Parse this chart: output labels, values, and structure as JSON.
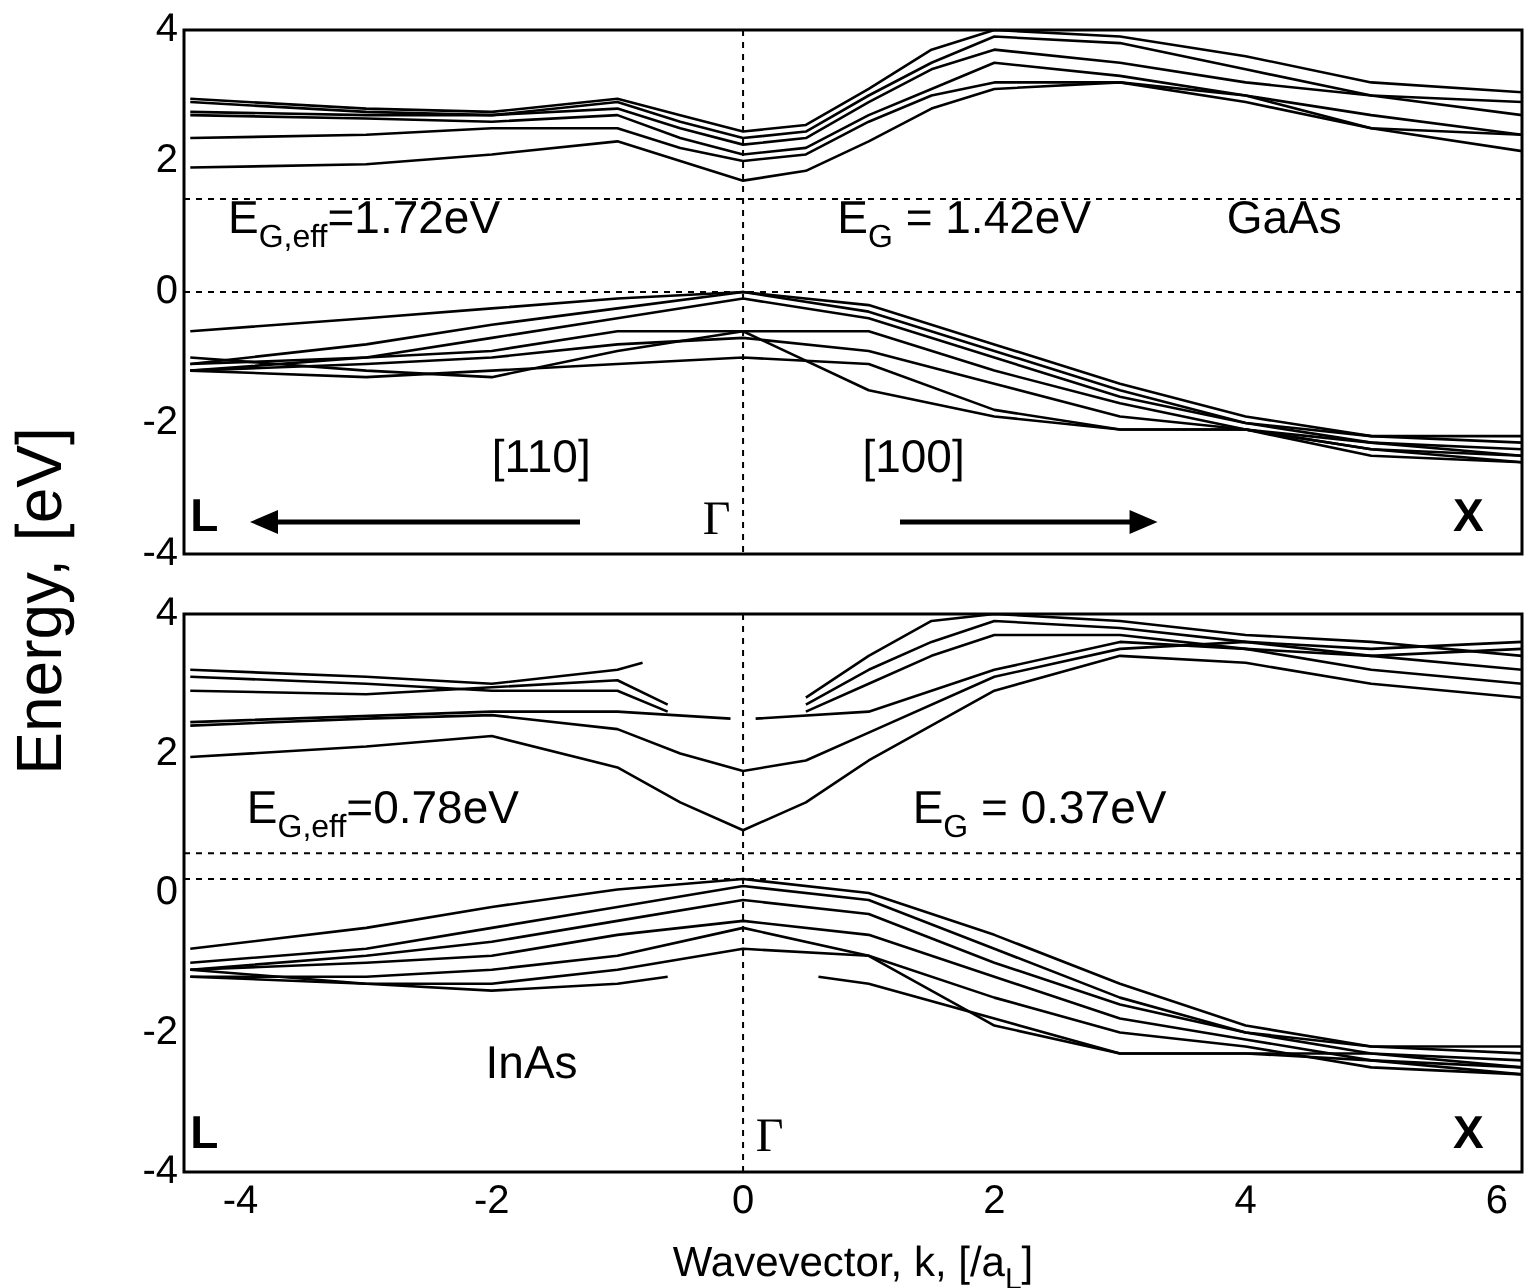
{
  "chart_data": [
    {
      "type": "line",
      "ylabel": "Energy, [eV]",
      "xlim": [
        -4.45,
        6.2
      ],
      "xticks": [
        -4,
        -2,
        0,
        2,
        4,
        6
      ],
      "ylim": [
        -4,
        4
      ],
      "yticks": [
        -4,
        -2,
        0,
        2,
        4
      ],
      "tick_labels": "y",
      "grid": false,
      "legend": false,
      "marker": "none",
      "line_style": "solid",
      "annotations": [
        "E$_{G,eff}$=1.72eV",
        "E$_{G}$ = 1.42eV",
        "GaAs",
        "[110]",
        "[100]",
        "L",
        "Γ",
        "X"
      ],
      "ref_lines": [
        {
          "axis": "y",
          "value": 1.42,
          "color": "#000000",
          "line_style": "dashed"
        },
        {
          "axis": "y",
          "value": 0,
          "color": "#000000",
          "line_style": "dashed"
        },
        {
          "axis": "x",
          "value": 0,
          "color": "#000000",
          "line_style": "dashed"
        }
      ],
      "series": [
        {
          "color": "#000000",
          "x": [
            -4.4,
            -3,
            -2,
            -1,
            -0.5,
            0,
            0.5,
            1,
            1.5,
            2,
            3,
            4,
            5,
            6.2
          ],
          "values": [
            1.9,
            1.95,
            2.1,
            2.3,
            2.0,
            1.7,
            1.85,
            2.3,
            2.8,
            3.1,
            3.2,
            3.0,
            2.5,
            2.15
          ]
        },
        {
          "color": "#000000",
          "x": [
            -4.4,
            -3,
            -2,
            -1,
            -0.5,
            0,
            0.5,
            1,
            1.5,
            2,
            3,
            4,
            5,
            6.2
          ],
          "values": [
            2.35,
            2.4,
            2.5,
            2.5,
            2.2,
            2.0,
            2.1,
            2.6,
            3.0,
            3.2,
            3.2,
            2.9,
            2.5,
            2.4
          ]
        },
        {
          "color": "#000000",
          "x": [
            -4.4,
            -3,
            -2,
            -1,
            -0.5,
            0,
            0.5,
            1,
            1.5,
            2,
            3,
            4,
            5,
            6.2
          ],
          "values": [
            2.7,
            2.65,
            2.6,
            2.7,
            2.35,
            2.1,
            2.2,
            2.7,
            3.1,
            3.5,
            3.3,
            3.0,
            2.7,
            2.4
          ]
        },
        {
          "color": "#000000",
          "x": [
            -4.4,
            -3,
            -2,
            -1,
            -0.5,
            0,
            0.5,
            1,
            1.5,
            2,
            3,
            4,
            5,
            6.2
          ],
          "values": [
            2.9,
            2.75,
            2.7,
            2.8,
            2.5,
            2.25,
            2.35,
            2.9,
            3.4,
            3.7,
            3.5,
            3.2,
            3.0,
            2.7
          ]
        },
        {
          "color": "#000000",
          "x": [
            -4.4,
            -3,
            -2,
            -1,
            -0.5,
            0,
            0.5,
            1,
            1.5,
            2,
            3,
            4,
            5,
            6.2
          ],
          "values": [
            2.75,
            2.7,
            2.7,
            2.9,
            2.6,
            2.35,
            2.45,
            3.0,
            3.5,
            3.9,
            3.8,
            3.4,
            3.0,
            2.9
          ]
        },
        {
          "color": "#000000",
          "x": [
            -4.4,
            -3,
            -2,
            -1,
            -0.5,
            0,
            0.5,
            1,
            1.5,
            2,
            3,
            4,
            5,
            6.2
          ],
          "values": [
            2.95,
            2.8,
            2.75,
            2.95,
            2.7,
            2.45,
            2.55,
            3.1,
            3.7,
            4.0,
            3.9,
            3.6,
            3.2,
            3.05
          ]
        },
        {
          "color": "#000000",
          "x": [
            -4.4,
            -3,
            -2,
            -1,
            0,
            1,
            2,
            3,
            4,
            5,
            6.2
          ],
          "values": [
            -0.6,
            -0.4,
            -0.25,
            -0.1,
            0,
            -0.2,
            -0.8,
            -1.4,
            -1.9,
            -2.2,
            -2.3
          ]
        },
        {
          "color": "#000000",
          "x": [
            -4.4,
            -3,
            -2,
            -1,
            0,
            1,
            2,
            3,
            4,
            5,
            6.2
          ],
          "values": [
            -1.1,
            -0.8,
            -0.5,
            -0.25,
            0,
            -0.3,
            -0.9,
            -1.5,
            -2.0,
            -2.3,
            -2.4
          ]
        },
        {
          "color": "#000000",
          "x": [
            -4.4,
            -3,
            -2,
            -1,
            0,
            1,
            2,
            3,
            4,
            5,
            6.2
          ],
          "values": [
            -1.2,
            -1.0,
            -0.7,
            -0.4,
            -0.1,
            -0.4,
            -1.0,
            -1.6,
            -2.0,
            -2.2,
            -2.2
          ]
        },
        {
          "color": "#000000",
          "x": [
            -4.4,
            -3,
            -2,
            -1,
            0,
            1,
            2,
            3,
            4,
            5,
            6.2
          ],
          "values": [
            -1.1,
            -1.0,
            -0.9,
            -0.6,
            -0.6,
            -0.6,
            -1.2,
            -1.7,
            -2.1,
            -2.4,
            -2.5
          ]
        },
        {
          "color": "#000000",
          "x": [
            -4.4,
            -3,
            -2,
            -1,
            0,
            1,
            2,
            3,
            4,
            5,
            6.2
          ],
          "values": [
            -1.2,
            -1.1,
            -1.0,
            -0.8,
            -0.7,
            -0.9,
            -1.4,
            -1.9,
            -2.1,
            -2.4,
            -2.6
          ]
        },
        {
          "color": "#000000",
          "x": [
            -4.4,
            -3,
            -2,
            -1,
            0,
            1,
            2,
            3,
            4,
            5,
            6.2
          ],
          "values": [
            -1.2,
            -1.3,
            -1.2,
            -1.1,
            -1.0,
            -1.1,
            -1.8,
            -2.1,
            -2.1,
            -2.3,
            -2.5
          ]
        },
        {
          "color": "#000000",
          "x": [
            -4.4,
            -3,
            -2,
            -1,
            0,
            1,
            2,
            3,
            4,
            5,
            6.2
          ],
          "values": [
            -1.0,
            -1.2,
            -1.3,
            -0.9,
            -0.6,
            -1.5,
            -1.9,
            -2.1,
            -2.1,
            -2.5,
            -2.6
          ]
        }
      ]
    },
    {
      "type": "line",
      "xlabel": "Wavevector, k, [/a$_{L}$]",
      "xlim": [
        -4.45,
        6.2
      ],
      "xticks": [
        -4,
        -2,
        0,
        2,
        4,
        6
      ],
      "ylim": [
        -4,
        4
      ],
      "yticks": [
        -4,
        -2,
        0,
        2,
        4
      ],
      "grid": false,
      "legend": false,
      "marker": "none",
      "line_style": "solid",
      "annotations": [
        "E$_{G,eff}$=0.78eV",
        "E$_{G}$ = 0.37eV",
        "InAs",
        "L",
        "Γ",
        "X"
      ],
      "ref_lines": [
        {
          "axis": "y",
          "value": 0.57,
          "color": "#000000",
          "line_style": "dashed"
        },
        {
          "axis": "y",
          "value": 0.2,
          "color": "#000000",
          "line_style": "dashed"
        },
        {
          "axis": "x",
          "value": 0,
          "color": "#000000",
          "line_style": "dashed"
        }
      ],
      "series": [
        {
          "color": "#000000",
          "x": [
            -4.4,
            -3,
            -2,
            -1,
            -0.5,
            0,
            0.5,
            1,
            2,
            3,
            4,
            5,
            6.2
          ],
          "values": [
            1.95,
            2.1,
            2.25,
            1.8,
            1.3,
            0.9,
            1.3,
            1.9,
            2.9,
            3.4,
            3.3,
            3.0,
            2.8
          ]
        },
        {
          "color": "#000000",
          "x": [
            -4.4,
            -3,
            -2,
            -1,
            -0.5,
            0,
            0.5,
            1,
            2,
            3,
            4,
            5,
            6.2
          ],
          "values": [
            2.4,
            2.5,
            2.55,
            2.35,
            2.0,
            1.75,
            1.9,
            2.3,
            3.1,
            3.5,
            3.6,
            3.4,
            3.2
          ]
        },
        {
          "color": "#000000",
          "x": [
            -4.4,
            -2,
            -1,
            -0.1
          ],
          "values": [
            2.45,
            2.6,
            2.6,
            2.5
          ]
        },
        {
          "color": "#000000",
          "x": [
            0.1,
            1,
            2,
            3,
            4,
            5,
            6.2
          ],
          "values": [
            2.5,
            2.6,
            3.2,
            3.6,
            3.5,
            3.4,
            3.5
          ]
        },
        {
          "color": "#000000",
          "x": [
            -4.4,
            -3,
            -2,
            -1,
            -0.6
          ],
          "values": [
            2.9,
            2.85,
            2.95,
            3.05,
            2.7
          ]
        },
        {
          "color": "#000000",
          "x": [
            -4.4,
            -3,
            -2,
            -1,
            -0.6
          ],
          "values": [
            3.1,
            3.0,
            2.9,
            2.9,
            2.6
          ]
        },
        {
          "color": "#000000",
          "x": [
            -4.4,
            -3,
            -2,
            -1,
            -0.8
          ],
          "values": [
            3.2,
            3.1,
            3.0,
            3.2,
            3.3
          ]
        },
        {
          "color": "#000000",
          "x": [
            0.5,
            1,
            1.5,
            2,
            3,
            4,
            5,
            6.2
          ],
          "values": [
            2.7,
            3.2,
            3.6,
            3.9,
            3.8,
            3.6,
            3.5,
            3.6
          ]
        },
        {
          "color": "#000000",
          "x": [
            0.5,
            1,
            1.5,
            2,
            3,
            4,
            5,
            6.2
          ],
          "values": [
            2.6,
            3.0,
            3.4,
            3.7,
            3.7,
            3.5,
            3.2,
            3.0
          ]
        },
        {
          "color": "#000000",
          "x": [
            0.5,
            1,
            1.5,
            2,
            3,
            4,
            5,
            6.2
          ],
          "values": [
            2.8,
            3.4,
            3.9,
            4.0,
            3.9,
            3.7,
            3.6,
            3.4
          ]
        },
        {
          "color": "#000000",
          "x": [
            -4.4,
            -3,
            -2,
            -1,
            0,
            1,
            2,
            3,
            4,
            5,
            6.2
          ],
          "values": [
            -0.8,
            -0.5,
            -0.2,
            0.05,
            0.2,
            0,
            -0.6,
            -1.3,
            -1.9,
            -2.2,
            -2.3
          ]
        },
        {
          "color": "#000000",
          "x": [
            -4.4,
            -3,
            -2,
            -1,
            0,
            1,
            2,
            3,
            4,
            5,
            6.2
          ],
          "values": [
            -1.0,
            -0.8,
            -0.5,
            -0.2,
            0.1,
            -0.1,
            -0.8,
            -1.5,
            -2.0,
            -2.3,
            -2.4
          ]
        },
        {
          "color": "#000000",
          "x": [
            -4.4,
            -3,
            -2,
            -1,
            0,
            1,
            2,
            3,
            4,
            5,
            6.2
          ],
          "values": [
            -1.1,
            -0.9,
            -0.7,
            -0.4,
            -0.1,
            -0.3,
            -1.0,
            -1.6,
            -2.0,
            -2.2,
            -2.2
          ]
        },
        {
          "color": "#000000",
          "x": [
            -4.4,
            -3,
            -2,
            -1,
            0,
            1,
            2,
            3,
            4,
            5,
            6.2
          ],
          "values": [
            -1.1,
            -1.0,
            -0.9,
            -0.6,
            -0.4,
            -0.6,
            -1.2,
            -1.8,
            -2.1,
            -2.4,
            -2.5
          ]
        },
        {
          "color": "#000000",
          "x": [
            -4.4,
            -3,
            -2,
            -1,
            0,
            1,
            2,
            3,
            4,
            5,
            6.2
          ],
          "values": [
            -1.2,
            -1.2,
            -1.1,
            -0.9,
            -0.5,
            -0.9,
            -1.5,
            -2.0,
            -2.2,
            -2.5,
            -2.6
          ]
        },
        {
          "color": "#000000",
          "x": [
            -4.4,
            -3,
            -2,
            -1,
            0,
            1,
            2,
            3,
            4,
            5,
            6.2
          ],
          "values": [
            -1.2,
            -1.3,
            -1.3,
            -1.1,
            -0.8,
            -0.9,
            -1.9,
            -2.3,
            -2.3,
            -2.3,
            -2.5
          ]
        },
        {
          "color": "#000000",
          "x": [
            -4.4,
            -3,
            -2,
            -1,
            -0.6
          ],
          "values": [
            -1.1,
            -1.3,
            -1.4,
            -1.3,
            -1.2
          ]
        },
        {
          "color": "#000000",
          "x": [
            0.6,
            1,
            2,
            3,
            4,
            5,
            6.2
          ],
          "values": [
            -1.2,
            -1.3,
            -1.8,
            -2.3,
            -2.3,
            -2.4,
            -2.6
          ]
        }
      ]
    }
  ]
}
